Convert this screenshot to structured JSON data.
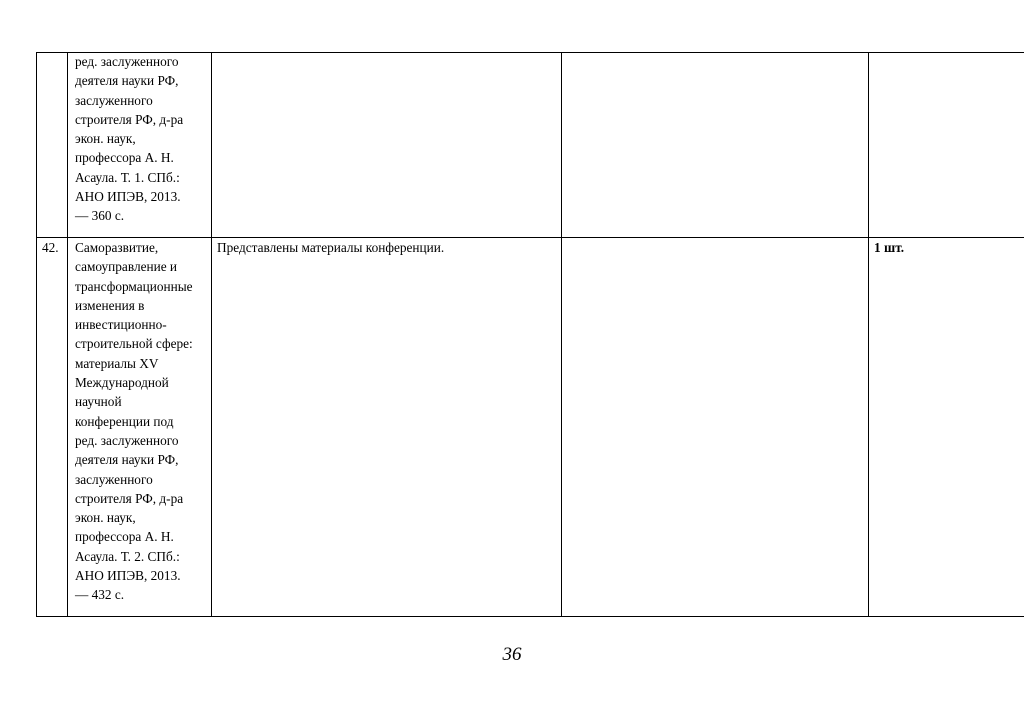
{
  "rows": [
    {
      "number": "",
      "title_lines": [
        "ред. заслуженного",
        "деятеля науки РФ,",
        "заслуженного",
        "строителя РФ, д-ра",
        "экон. наук,",
        "профессора А. Н.",
        "Асаула. Т. 1. СПб.:",
        "АНО ИПЭВ, 2013.",
        "— 360 с."
      ],
      "description": "",
      "col4": "",
      "quantity": ""
    },
    {
      "number": "42.",
      "title_lines": [
        "Саморазвитие,",
        "самоуправление и",
        "трансформационные",
        "изменения в",
        "инвестиционно-",
        "строительной сфере:",
        "материалы XV",
        "Международной",
        "научной",
        "конференции под",
        "ред. заслуженного",
        "деятеля науки РФ,",
        "заслуженного",
        "строителя РФ, д-ра",
        "экон. наук,",
        "профессора А. Н.",
        "Асаула. Т. 2. СПб.:",
        "АНО ИПЭВ, 2013.",
        "— 432 с."
      ],
      "description": "Представлены материалы конференции.",
      "col4": "",
      "quantity": "1 шт."
    }
  ],
  "page_number": "36"
}
